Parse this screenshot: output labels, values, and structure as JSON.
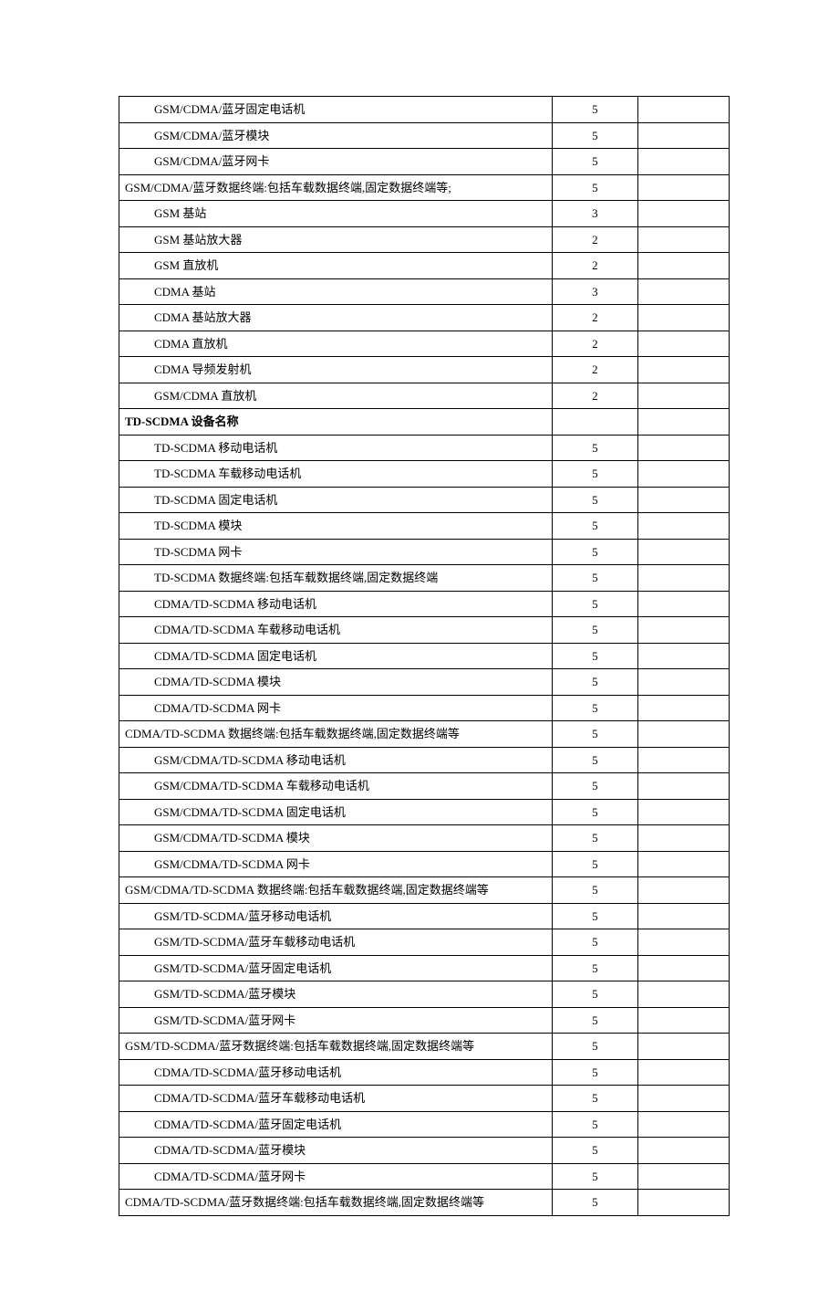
{
  "table": {
    "columns": {
      "col1_width": "71%",
      "col2_width": "14%",
      "col3_width": "15%"
    },
    "border_color": "#000000",
    "background_color": "#ffffff",
    "font_family": "SimSun",
    "base_fontsize": 13,
    "rows": [
      {
        "label": "GSM/CDMA/蓝牙固定电话机",
        "value": "5",
        "indent": 1,
        "header": false
      },
      {
        "label": "GSM/CDMA/蓝牙模块",
        "value": "5",
        "indent": 1,
        "header": false
      },
      {
        "label": "GSM/CDMA/蓝牙网卡",
        "value": "5",
        "indent": 1,
        "header": false
      },
      {
        "label": "GSM/CDMA/蓝牙数据终端:包括车载数据终端,固定数据终端等;",
        "value": "5",
        "indent": 0,
        "header": false
      },
      {
        "label": "GSM 基站",
        "value": "3",
        "indent": 1,
        "header": false
      },
      {
        "label": "GSM 基站放大器",
        "value": "2",
        "indent": 1,
        "header": false
      },
      {
        "label": "GSM 直放机",
        "value": "2",
        "indent": 1,
        "header": false
      },
      {
        "label": "CDMA 基站",
        "value": "3",
        "indent": 1,
        "header": false
      },
      {
        "label": "CDMA 基站放大器",
        "value": "2",
        "indent": 1,
        "header": false
      },
      {
        "label": "CDMA 直放机",
        "value": "2",
        "indent": 1,
        "header": false
      },
      {
        "label": "CDMA 导频发射机",
        "value": "2",
        "indent": 1,
        "header": false
      },
      {
        "label": "GSM/CDMA 直放机",
        "value": "2",
        "indent": 1,
        "header": false
      },
      {
        "label": "TD-SCDMA 设备名称",
        "value": "",
        "indent": 0,
        "header": true
      },
      {
        "label": "TD-SCDMA 移动电话机",
        "value": "5",
        "indent": 1,
        "header": false
      },
      {
        "label": "TD-SCDMA 车载移动电话机",
        "value": "5",
        "indent": 1,
        "header": false
      },
      {
        "label": "TD-SCDMA 固定电话机",
        "value": "5",
        "indent": 1,
        "header": false
      },
      {
        "label": "TD-SCDMA 模块",
        "value": "5",
        "indent": 1,
        "header": false
      },
      {
        "label": "TD-SCDMA 网卡",
        "value": "5",
        "indent": 1,
        "header": false
      },
      {
        "label": "TD-SCDMA 数据终端:包括车载数据终端,固定数据终端",
        "value": "5",
        "indent": 1,
        "header": false
      },
      {
        "label": "CDMA/TD-SCDMA 移动电话机",
        "value": "5",
        "indent": 1,
        "header": false
      },
      {
        "label": "CDMA/TD-SCDMA 车载移动电话机",
        "value": "5",
        "indent": 1,
        "header": false
      },
      {
        "label": "CDMA/TD-SCDMA 固定电话机",
        "value": "5",
        "indent": 1,
        "header": false
      },
      {
        "label": "CDMA/TD-SCDMA 模块",
        "value": "5",
        "indent": 1,
        "header": false
      },
      {
        "label": "CDMA/TD-SCDMA 网卡",
        "value": "5",
        "indent": 1,
        "header": false
      },
      {
        "label": "CDMA/TD-SCDMA 数据终端:包括车载数据终端,固定数据终端等",
        "value": "5",
        "indent": 0,
        "header": false
      },
      {
        "label": "GSM/CDMA/TD-SCDMA 移动电话机",
        "value": "5",
        "indent": 1,
        "header": false
      },
      {
        "label": "GSM/CDMA/TD-SCDMA 车载移动电话机",
        "value": "5",
        "indent": 1,
        "header": false
      },
      {
        "label": "GSM/CDMA/TD-SCDMA 固定电话机",
        "value": "5",
        "indent": 1,
        "header": false
      },
      {
        "label": "GSM/CDMA/TD-SCDMA 模块",
        "value": "5",
        "indent": 1,
        "header": false
      },
      {
        "label": "GSM/CDMA/TD-SCDMA 网卡",
        "value": "5",
        "indent": 1,
        "header": false
      },
      {
        "label": "GSM/CDMA/TD-SCDMA 数据终端:包括车载数据终端,固定数据终端等",
        "value": "5",
        "indent": 0,
        "header": false
      },
      {
        "label": "GSM/TD-SCDMA/蓝牙移动电话机",
        "value": "5",
        "indent": 1,
        "header": false
      },
      {
        "label": "GSM/TD-SCDMA/蓝牙车载移动电话机",
        "value": "5",
        "indent": 1,
        "header": false
      },
      {
        "label": "GSM/TD-SCDMA/蓝牙固定电话机",
        "value": "5",
        "indent": 1,
        "header": false
      },
      {
        "label": "GSM/TD-SCDMA/蓝牙模块",
        "value": "5",
        "indent": 1,
        "header": false
      },
      {
        "label": "GSM/TD-SCDMA/蓝牙网卡",
        "value": "5",
        "indent": 1,
        "header": false
      },
      {
        "label": "GSM/TD-SCDMA/蓝牙数据终端:包括车载数据终端,固定数据终端等",
        "value": "5",
        "indent": 0,
        "header": false
      },
      {
        "label": "CDMA/TD-SCDMA/蓝牙移动电话机",
        "value": "5",
        "indent": 1,
        "header": false
      },
      {
        "label": "CDMA/TD-SCDMA/蓝牙车载移动电话机",
        "value": "5",
        "indent": 1,
        "header": false
      },
      {
        "label": "CDMA/TD-SCDMA/蓝牙固定电话机",
        "value": "5",
        "indent": 1,
        "header": false
      },
      {
        "label": "CDMA/TD-SCDMA/蓝牙模块",
        "value": "5",
        "indent": 1,
        "header": false
      },
      {
        "label": "CDMA/TD-SCDMA/蓝牙网卡",
        "value": "5",
        "indent": 1,
        "header": false
      },
      {
        "label": "CDMA/TD-SCDMA/蓝牙数据终端:包括车载数据终端,固定数据终端等",
        "value": "5",
        "indent": 0,
        "header": false
      }
    ]
  }
}
